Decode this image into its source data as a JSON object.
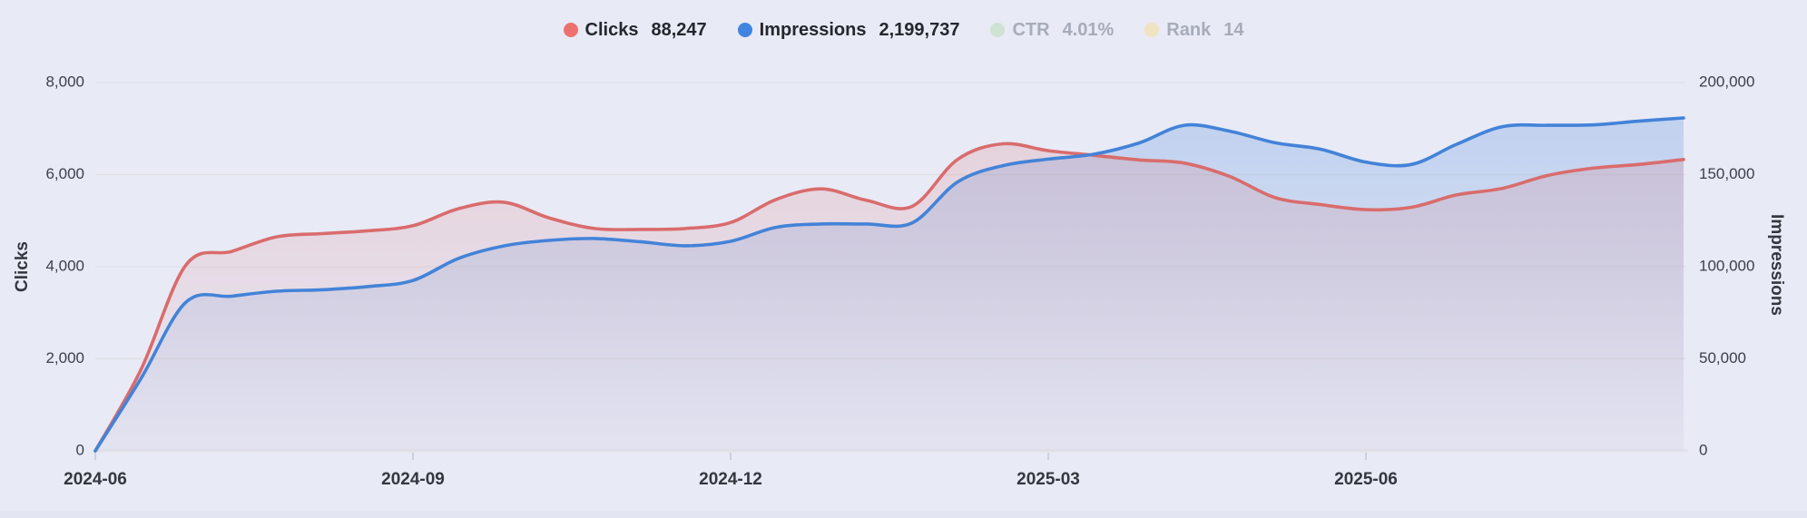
{
  "legend": {
    "items": [
      {
        "key": "clicks",
        "label": "Clicks",
        "value": "88,247",
        "color": "#eb7270",
        "enabled": true
      },
      {
        "key": "impressions",
        "label": "Impressions",
        "value": "2,199,737",
        "color": "#4285e0",
        "enabled": true
      },
      {
        "key": "ctr",
        "label": "CTR",
        "value": "4.01%",
        "color": "#cfe2d4",
        "enabled": false
      },
      {
        "key": "rank",
        "label": "Rank",
        "value": "14",
        "color": "#efe3c2",
        "enabled": false
      }
    ]
  },
  "chart_data": {
    "type": "line",
    "title": "",
    "grid": "horizontal",
    "legend_position": "top-center",
    "x": [
      "2024-06-01",
      "2024-06-14",
      "2024-06-27",
      "2024-07-10",
      "2024-07-23",
      "2024-08-05",
      "2024-08-18",
      "2024-08-31",
      "2024-09-13",
      "2024-09-26",
      "2024-10-09",
      "2024-10-22",
      "2024-11-04",
      "2024-11-17",
      "2024-11-30",
      "2024-12-13",
      "2024-12-26",
      "2025-01-08",
      "2025-01-21",
      "2025-02-03",
      "2025-02-16",
      "2025-03-01",
      "2025-03-14",
      "2025-03-27",
      "2025-04-09",
      "2025-04-22",
      "2025-05-05",
      "2025-05-18",
      "2025-05-31",
      "2025-06-13",
      "2025-06-26",
      "2025-07-09",
      "2025-07-22",
      "2025-08-04",
      "2025-08-17",
      "2025-08-30"
    ],
    "series": [
      {
        "key": "clicks",
        "name": "Clicks",
        "axis": "left",
        "color": "#d96c6c",
        "fill_opacity_top": 0.22,
        "values": [
          0,
          1750,
          4040,
          4330,
          4650,
          4720,
          4780,
          4890,
          5260,
          5400,
          5060,
          4830,
          4810,
          4830,
          4960,
          5460,
          5690,
          5440,
          5310,
          6330,
          6670,
          6520,
          6420,
          6320,
          6250,
          5960,
          5500,
          5350,
          5240,
          5290,
          5560,
          5700,
          5980,
          6140,
          6220,
          6330
        ]
      },
      {
        "key": "impressions",
        "name": "Impressions",
        "axis": "right",
        "color": "#4383d8",
        "fill_opacity_top": 0.26,
        "values": [
          0,
          39000,
          80800,
          84000,
          86700,
          87500,
          89200,
          92500,
          104500,
          111300,
          114300,
          115300,
          113600,
          111400,
          113800,
          121400,
          123200,
          123200,
          123800,
          146000,
          154900,
          158400,
          161100,
          167200,
          176800,
          173600,
          167300,
          163800,
          156800,
          155500,
          166500,
          176000,
          176800,
          177000,
          179000,
          180800
        ]
      }
    ],
    "left_axis": {
      "title": "Clicks",
      "range": [
        0,
        8000
      ],
      "ticks": [
        "0",
        "2,000",
        "4,000",
        "6,000",
        "8,000"
      ]
    },
    "right_axis": {
      "title": "Impressions",
      "range": [
        0,
        200000
      ],
      "ticks": [
        "0",
        "50,000",
        "100,000",
        "150,000",
        "200,000"
      ]
    },
    "x_ticks": [
      {
        "index": 0,
        "label": "2024-06"
      },
      {
        "index": 7,
        "label": "2024-09"
      },
      {
        "index": 14,
        "label": "2024-12"
      },
      {
        "index": 21,
        "label": "2025-03"
      },
      {
        "index": 28,
        "label": "2025-06"
      }
    ]
  }
}
